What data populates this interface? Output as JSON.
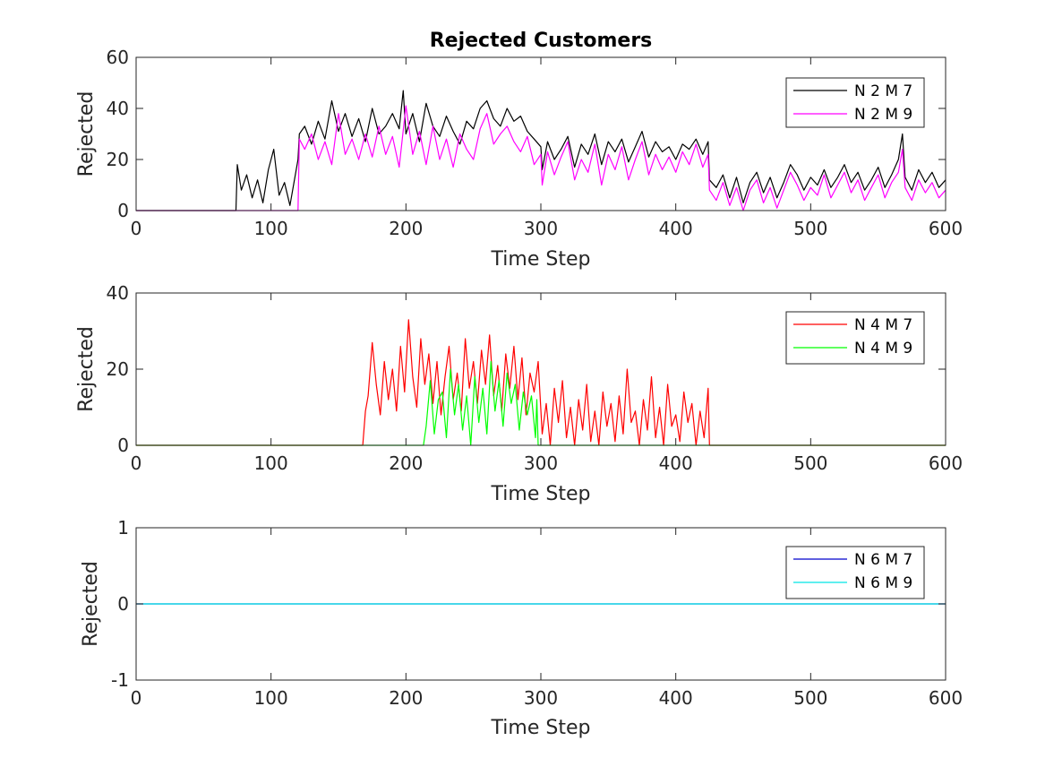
{
  "figure": {
    "title": "Rejected Customers"
  },
  "chart_data": [
    {
      "type": "line",
      "title": "Rejected Customers",
      "xlabel": "Time Step",
      "ylabel": "Rejected",
      "xlim": [
        0,
        600
      ],
      "ylim": [
        0,
        60
      ],
      "xticks": [
        0,
        100,
        200,
        300,
        400,
        500,
        600
      ],
      "yticks": [
        0,
        20,
        40,
        60
      ],
      "legend": "top-right",
      "series": [
        {
          "name": "N 2 M 7",
          "color": "#000000",
          "x": [
            0,
            74,
            75,
            78,
            82,
            86,
            90,
            94,
            98,
            102,
            106,
            110,
            114,
            118,
            120,
            121,
            125,
            130,
            135,
            140,
            145,
            150,
            155,
            160,
            165,
            170,
            175,
            180,
            185,
            190,
            195,
            198,
            200,
            205,
            210,
            215,
            220,
            225,
            230,
            235,
            240,
            245,
            250,
            255,
            260,
            265,
            270,
            275,
            280,
            285,
            290,
            295,
            300,
            301,
            305,
            310,
            315,
            320,
            325,
            330,
            335,
            340,
            345,
            350,
            355,
            360,
            365,
            370,
            375,
            380,
            385,
            390,
            395,
            400,
            405,
            410,
            415,
            420,
            424,
            425,
            430,
            435,
            440,
            445,
            450,
            455,
            460,
            465,
            470,
            475,
            480,
            485,
            490,
            495,
            500,
            505,
            510,
            515,
            520,
            525,
            530,
            535,
            540,
            545,
            550,
            555,
            560,
            565,
            568,
            570,
            575,
            580,
            585,
            590,
            595,
            600
          ],
          "values": [
            0,
            0,
            18,
            8,
            14,
            5,
            12,
            3,
            16,
            24,
            6,
            11,
            2,
            14,
            20,
            30,
            33,
            26,
            35,
            28,
            43,
            31,
            38,
            29,
            36,
            27,
            40,
            30,
            33,
            38,
            32,
            47,
            30,
            38,
            27,
            42,
            33,
            29,
            37,
            31,
            26,
            35,
            32,
            40,
            43,
            36,
            33,
            40,
            35,
            37,
            31,
            28,
            25,
            16,
            27,
            20,
            24,
            29,
            17,
            26,
            22,
            30,
            18,
            27,
            23,
            28,
            19,
            25,
            31,
            21,
            27,
            23,
            25,
            20,
            26,
            24,
            28,
            22,
            27,
            12,
            9,
            14,
            5,
            13,
            3,
            11,
            15,
            7,
            13,
            5,
            11,
            18,
            14,
            8,
            13,
            10,
            16,
            9,
            13,
            18,
            11,
            15,
            8,
            12,
            17,
            9,
            14,
            20,
            30,
            13,
            8,
            16,
            11,
            15,
            9,
            12
          ]
        },
        {
          "name": "N 2 M 9",
          "color": "#ff00ff",
          "x": [
            0,
            120,
            121,
            125,
            130,
            135,
            140,
            145,
            150,
            155,
            160,
            165,
            170,
            175,
            180,
            185,
            190,
            195,
            200,
            205,
            210,
            215,
            220,
            225,
            230,
            235,
            240,
            245,
            250,
            255,
            260,
            265,
            270,
            275,
            280,
            285,
            290,
            295,
            300,
            301,
            305,
            310,
            315,
            320,
            325,
            330,
            335,
            340,
            345,
            350,
            355,
            360,
            365,
            370,
            375,
            380,
            385,
            390,
            395,
            400,
            405,
            410,
            415,
            420,
            424,
            425,
            430,
            435,
            440,
            445,
            450,
            455,
            460,
            465,
            470,
            475,
            480,
            485,
            490,
            495,
            500,
            505,
            510,
            515,
            520,
            525,
            530,
            535,
            540,
            545,
            550,
            555,
            560,
            565,
            568,
            570,
            575,
            580,
            585,
            590,
            595,
            600
          ],
          "values": [
            0,
            0,
            28,
            24,
            30,
            20,
            27,
            18,
            38,
            22,
            28,
            20,
            30,
            21,
            33,
            22,
            29,
            17,
            41,
            22,
            31,
            18,
            33,
            20,
            28,
            17,
            30,
            24,
            20,
            32,
            38,
            26,
            30,
            33,
            27,
            23,
            29,
            18,
            22,
            10,
            23,
            14,
            21,
            27,
            12,
            20,
            15,
            26,
            10,
            22,
            16,
            25,
            12,
            20,
            27,
            14,
            22,
            16,
            21,
            15,
            23,
            18,
            26,
            17,
            22,
            8,
            4,
            11,
            2,
            9,
            0,
            8,
            12,
            3,
            9,
            1,
            8,
            15,
            10,
            4,
            9,
            6,
            14,
            5,
            10,
            15,
            7,
            12,
            4,
            9,
            14,
            5,
            11,
            15,
            24,
            9,
            4,
            12,
            7,
            11,
            5,
            8
          ]
        }
      ]
    },
    {
      "type": "line",
      "title": "",
      "xlabel": "Time Step",
      "ylabel": "Rejected",
      "xlim": [
        0,
        600
      ],
      "ylim": [
        0,
        40
      ],
      "xticks": [
        0,
        100,
        200,
        300,
        400,
        500,
        600
      ],
      "yticks": [
        0,
        20,
        40
      ],
      "legend": "top-right",
      "series": [
        {
          "name": "N 4 M 7",
          "color": "#ff0000",
          "x": [
            0,
            168,
            170,
            172,
            175,
            178,
            181,
            184,
            187,
            190,
            193,
            196,
            199,
            202,
            205,
            208,
            211,
            214,
            217,
            220,
            223,
            226,
            229,
            232,
            235,
            238,
            241,
            244,
            247,
            250,
            253,
            256,
            259,
            262,
            265,
            268,
            271,
            274,
            277,
            280,
            283,
            286,
            289,
            292,
            295,
            298,
            301,
            304,
            307,
            310,
            313,
            316,
            319,
            322,
            325,
            328,
            331,
            334,
            337,
            340,
            343,
            346,
            349,
            352,
            355,
            358,
            361,
            364,
            367,
            370,
            373,
            376,
            379,
            382,
            385,
            388,
            391,
            394,
            397,
            400,
            403,
            406,
            409,
            412,
            415,
            418,
            421,
            424,
            425,
            600
          ],
          "values": [
            0,
            0,
            9,
            13,
            27,
            16,
            8,
            22,
            12,
            20,
            9,
            26,
            14,
            33,
            18,
            10,
            28,
            16,
            24,
            11,
            22,
            8,
            18,
            26,
            12,
            19,
            9,
            28,
            15,
            22,
            11,
            25,
            16,
            29,
            13,
            21,
            9,
            24,
            15,
            26,
            12,
            23,
            8,
            19,
            14,
            22,
            3,
            11,
            0,
            15,
            6,
            17,
            2,
            10,
            0,
            12,
            4,
            16,
            1,
            9,
            0,
            14,
            5,
            11,
            1,
            13,
            3,
            20,
            6,
            9,
            0,
            12,
            4,
            18,
            2,
            10,
            0,
            16,
            5,
            8,
            1,
            14,
            6,
            11,
            0,
            9,
            2,
            15,
            0,
            0
          ]
        },
        {
          "name": "N 4 M 9",
          "color": "#00ff00",
          "x": [
            0,
            213,
            215,
            218,
            221,
            224,
            227,
            230,
            233,
            236,
            239,
            242,
            245,
            248,
            251,
            254,
            257,
            260,
            263,
            266,
            269,
            272,
            275,
            278,
            281,
            284,
            287,
            290,
            293,
            296,
            297,
            298,
            301,
            304,
            600
          ],
          "values": [
            0,
            0,
            5,
            17,
            3,
            12,
            14,
            2,
            20,
            8,
            16,
            4,
            13,
            0,
            18,
            6,
            15,
            3,
            22,
            9,
            17,
            5,
            19,
            11,
            16,
            4,
            14,
            8,
            13,
            2,
            12,
            0,
            0,
            0,
            0
          ]
        }
      ]
    },
    {
      "type": "line",
      "title": "",
      "xlabel": "Time Step",
      "ylabel": "Rejected",
      "xlim": [
        0,
        600
      ],
      "ylim": [
        -1,
        1
      ],
      "xticks": [
        0,
        100,
        200,
        300,
        400,
        500,
        600
      ],
      "yticks": [
        -1,
        0,
        1
      ],
      "legend": "top-right",
      "series": [
        {
          "name": "N 6 M 7",
          "color": "#0000cc",
          "x": [
            0,
            600
          ],
          "values": [
            0,
            0
          ]
        },
        {
          "name": "N 6 M 9",
          "color": "#00e5e5",
          "x": [
            0,
            600
          ],
          "values": [
            0,
            0
          ]
        }
      ]
    }
  ]
}
